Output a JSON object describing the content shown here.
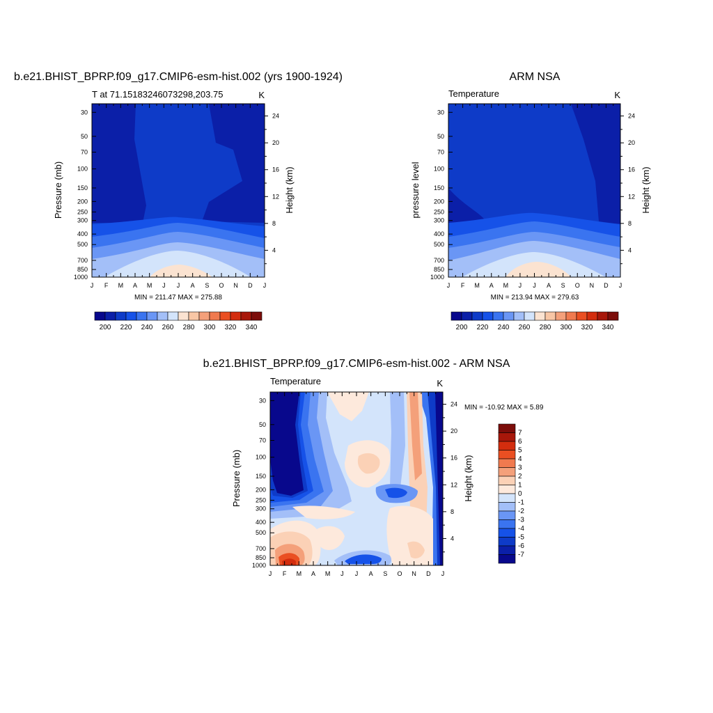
{
  "colors": {
    "temperature_scale": [
      "#08088c",
      "#0b1fa8",
      "#0e3bc8",
      "#1652e8",
      "#3a74f0",
      "#6a96f5",
      "#a3bff8",
      "#d3e4fb",
      "#fbe3d1",
      "#f8c6a5",
      "#f4a07a",
      "#f07a4f",
      "#ea4f22",
      "#d32d0e",
      "#a8170a",
      "#7c0d0a"
    ],
    "difference_scale": [
      "#08088c",
      "#0b1fa8",
      "#0e3bc8",
      "#1652e8",
      "#3a74f0",
      "#6a96f5",
      "#a3bff8",
      "#d3e4fb",
      "#fde9dc",
      "#fbd1b6",
      "#f4a07a",
      "#f07a4f",
      "#ea4f22",
      "#d32d0e",
      "#a8170a",
      "#7c0d0a"
    ]
  },
  "chart_data": [
    {
      "type": "heatmap",
      "title": "b.e21.BHIST_BPRP.f09_g17.CMIP6-esm-hist.002 (yrs 1900-1924)",
      "subtitle_left": "T at 71.15183246073298,203.75",
      "subtitle_right": "K",
      "ylabel": "Pressure (mb)",
      "ylabel_right": "Height (km)",
      "x": [
        "J",
        "F",
        "M",
        "A",
        "M",
        "J",
        "J",
        "A",
        "S",
        "O",
        "N",
        "D",
        "J"
      ],
      "y_pressure": [
        30,
        50,
        70,
        100,
        150,
        200,
        250,
        300,
        400,
        500,
        700,
        850,
        1000
      ],
      "y_height_km": [
        4,
        8,
        12,
        16,
        20,
        24
      ],
      "stats": "MIN = 211.47 MAX = 275.88",
      "min": 211.47,
      "max": 275.88,
      "colorbar_ticks": [
        "200",
        "220",
        "240",
        "260",
        "280",
        "300",
        "320",
        "340"
      ],
      "levels": [
        195,
        200,
        205,
        210,
        215,
        220,
        225,
        230,
        235,
        240,
        245,
        250,
        255,
        260,
        265,
        270,
        275
      ]
    },
    {
      "type": "heatmap",
      "title": "ARM NSA",
      "subtitle_left": "Temperature",
      "subtitle_right": "K",
      "ylabel": "pressure level",
      "ylabel_right": "Height (km)",
      "x": [
        "J",
        "F",
        "M",
        "A",
        "M",
        "J",
        "J",
        "A",
        "S",
        "O",
        "N",
        "D",
        "J"
      ],
      "y_pressure": [
        30,
        50,
        70,
        100,
        150,
        200,
        250,
        300,
        400,
        500,
        700,
        850,
        1000
      ],
      "y_height_km": [
        4,
        8,
        12,
        16,
        20,
        24
      ],
      "stats": "MIN = 213.94 MAX = 279.63",
      "min": 213.94,
      "max": 279.63,
      "colorbar_ticks": [
        "200",
        "220",
        "240",
        "260",
        "280",
        "300",
        "320",
        "340"
      ]
    },
    {
      "type": "heatmap",
      "title": "b.e21.BHIST_BPRP.f09_g17.CMIP6-esm-hist.002 - ARM NSA",
      "subtitle_left": "Temperature",
      "subtitle_right": "K",
      "ylabel": "Pressure (mb)",
      "ylabel_right": "Height (km)",
      "x": [
        "J",
        "F",
        "M",
        "A",
        "M",
        "J",
        "J",
        "A",
        "S",
        "O",
        "N",
        "D",
        "J"
      ],
      "y_pressure": [
        30,
        50,
        70,
        100,
        150,
        200,
        250,
        300,
        400,
        500,
        700,
        850,
        1000
      ],
      "y_height_km": [
        4,
        8,
        12,
        16,
        20,
        24
      ],
      "stats": "MIN = -10.92 MAX =   5.89",
      "min": -10.92,
      "max": 5.89,
      "colorbar_ticks": [
        "7",
        "6",
        "5",
        "4",
        "3",
        "2",
        "1",
        "0",
        "-1",
        "-2",
        "-3",
        "-4",
        "-5",
        "-6",
        "-7"
      ]
    }
  ]
}
